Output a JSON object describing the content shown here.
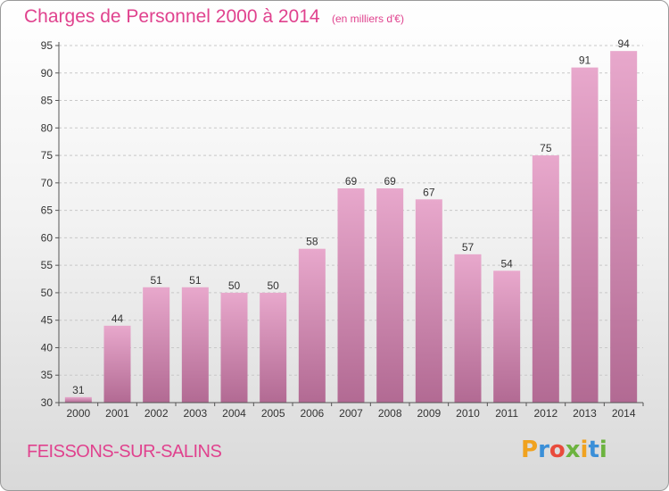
{
  "header": {
    "title": "Charges de Personnel 2000 à 2014",
    "unit_note": "(en milliers d'€)"
  },
  "footer": {
    "location": "FEISSONS-SUR-SALINS",
    "brand": "Proxiti"
  },
  "colors": {
    "title": "#e0428e",
    "bar_top": "#e8a8cc",
    "bar_bottom": "#b26a93",
    "grid": "#c8c8c8"
  },
  "chart_data": {
    "type": "bar",
    "title": "Charges de Personnel 2000 à 2014",
    "subtitle": "(en milliers d'€)",
    "xlabel": "",
    "ylabel": "",
    "categories": [
      "2000",
      "2001",
      "2002",
      "2003",
      "2004",
      "2005",
      "2006",
      "2007",
      "2008",
      "2009",
      "2010",
      "2011",
      "2012",
      "2013",
      "2014"
    ],
    "values": [
      31,
      44,
      51,
      51,
      50,
      50,
      58,
      69,
      69,
      67,
      57,
      54,
      75,
      91,
      94
    ],
    "ylim": [
      30,
      95
    ],
    "yticks": [
      30,
      35,
      40,
      45,
      50,
      55,
      60,
      65,
      70,
      75,
      80,
      85,
      90,
      95
    ],
    "grid": true,
    "legend": "none"
  }
}
